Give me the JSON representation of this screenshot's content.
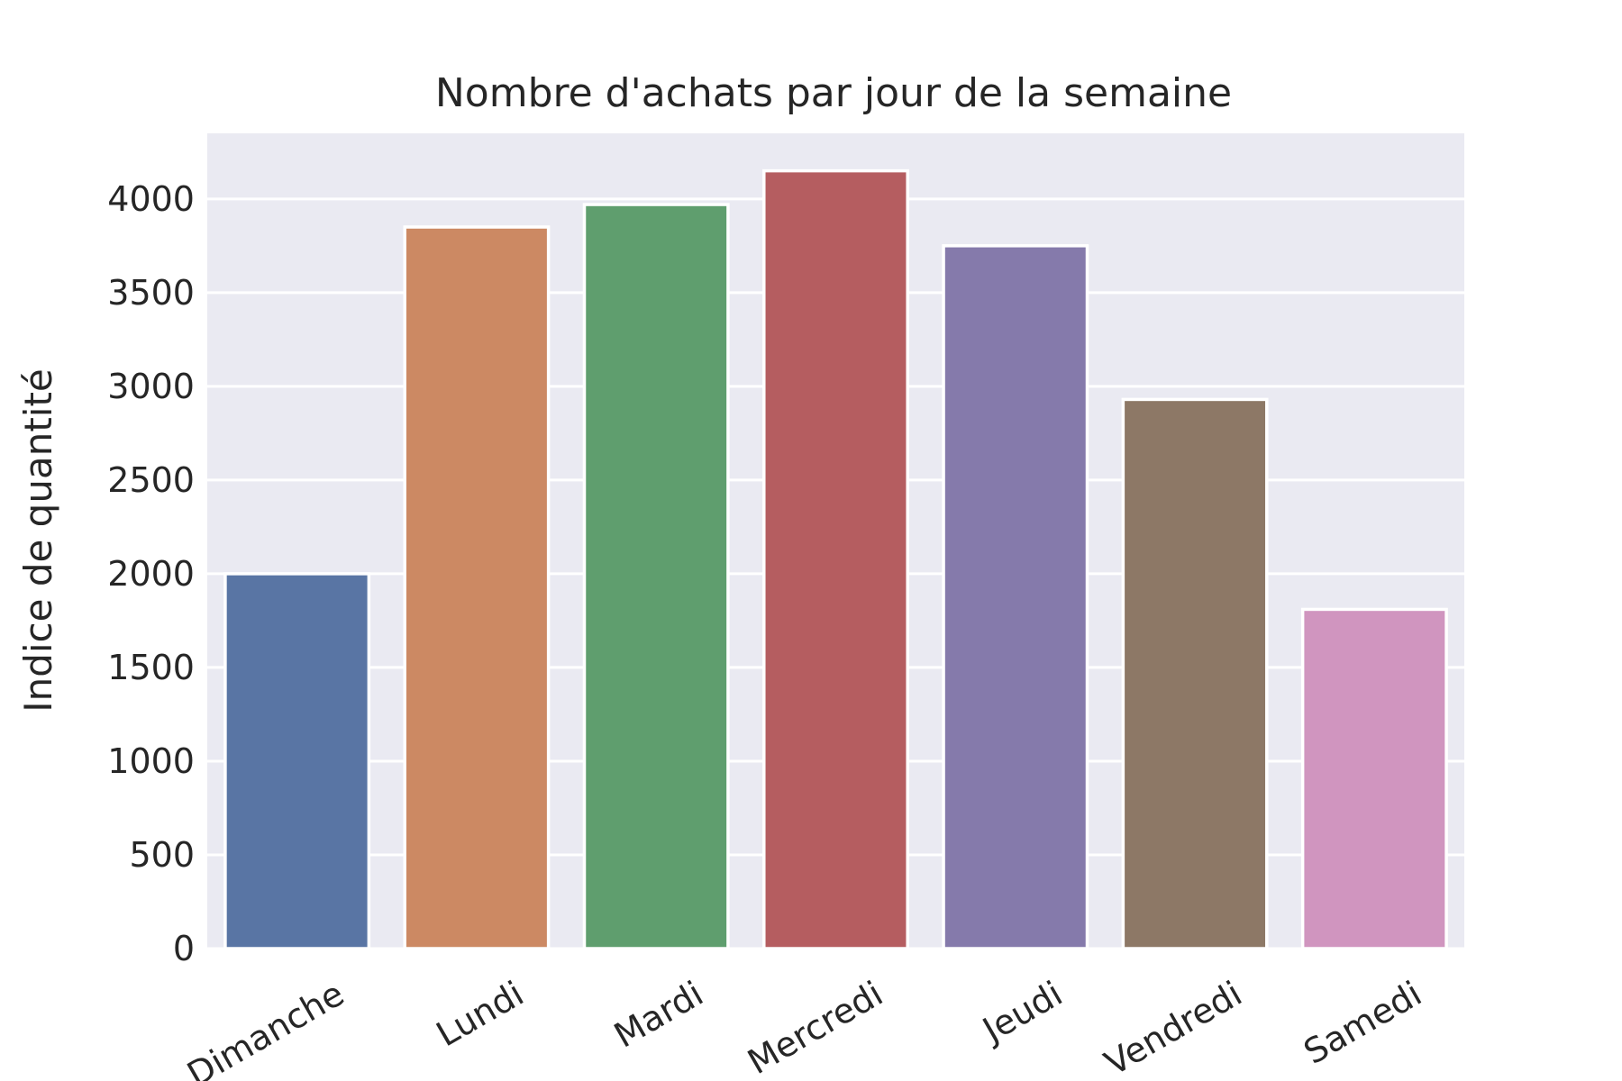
{
  "chart_data": {
    "type": "bar",
    "title": "Nombre d'achats par jour de la semaine",
    "xlabel": "",
    "ylabel": "Indice de quantité",
    "categories": [
      "Dimanche",
      "Lundi",
      "Mardi",
      "Mercredi",
      "Jeudi",
      "Vendredi",
      "Samedi"
    ],
    "values": [
      2000,
      3850,
      3970,
      4150,
      3750,
      2930,
      1810
    ],
    "colors": [
      "#5975a4",
      "#cc8963",
      "#5f9e6e",
      "#b55d60",
      "#857aab",
      "#8d7866",
      "#d095bf"
    ],
    "ylim": [
      0,
      4350
    ],
    "yticks": [
      0,
      500,
      1000,
      1500,
      2000,
      2500,
      3000,
      3500,
      4000
    ],
    "ytick_labels": [
      "0",
      "500",
      "1000",
      "1500",
      "2000",
      "2500",
      "3000",
      "3500",
      "4000"
    ],
    "grid": true,
    "background": "#eaeaf2",
    "x_tick_rotation_deg": -30
  }
}
